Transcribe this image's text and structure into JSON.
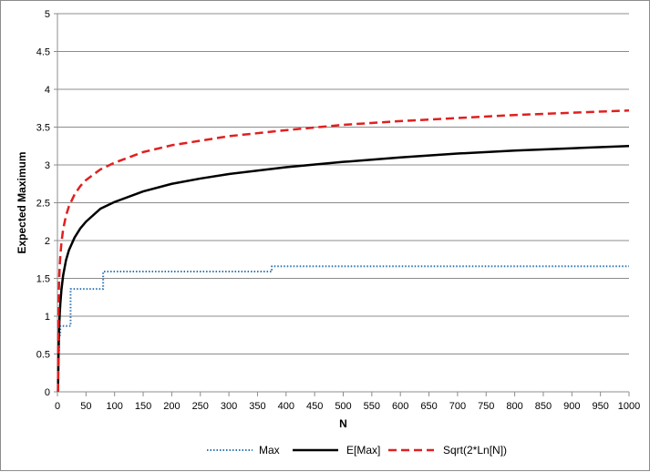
{
  "chart_data": {
    "type": "line",
    "title": "",
    "xlabel": "N",
    "ylabel": "Expected Maximum",
    "xlim": [
      0,
      1000
    ],
    "ylim": [
      0,
      5
    ],
    "x_ticks": [
      0,
      50,
      100,
      150,
      200,
      250,
      300,
      350,
      400,
      450,
      500,
      550,
      600,
      650,
      700,
      750,
      800,
      850,
      900,
      950,
      1000
    ],
    "y_ticks": [
      0,
      0.5,
      1,
      1.5,
      2,
      2.5,
      3,
      3.5,
      4,
      4.5,
      5
    ],
    "y_tick_labels": [
      "0",
      "0.5",
      "1",
      "1.5",
      "2",
      "2.5",
      "3",
      "3.5",
      "4",
      "4.5",
      "5"
    ],
    "grid": "horizontal",
    "legend_position": "bottom",
    "series": [
      {
        "name": "Max",
        "style": "dotted",
        "color": "#2e75b6",
        "step": true,
        "x": [
          1,
          2,
          3,
          5,
          7,
          10,
          15,
          22,
          23,
          50,
          78,
          80,
          200,
          370,
          375,
          500,
          1000
        ],
        "values": [
          0.3,
          0.55,
          0.75,
          0.87,
          0.87,
          0.87,
          0.87,
          0.87,
          1.36,
          1.36,
          1.36,
          1.59,
          1.59,
          1.59,
          1.66,
          1.66,
          1.66
        ]
      },
      {
        "name": "E[Max]",
        "style": "solid",
        "color": "#000000",
        "x": [
          1,
          2,
          3,
          4,
          5,
          7,
          10,
          15,
          20,
          30,
          40,
          50,
          75,
          100,
          150,
          200,
          250,
          300,
          400,
          500,
          600,
          700,
          800,
          900,
          1000
        ],
        "values": [
          0,
          0.56,
          0.85,
          1.03,
          1.16,
          1.35,
          1.54,
          1.74,
          1.87,
          2.04,
          2.16,
          2.25,
          2.42,
          2.51,
          2.65,
          2.75,
          2.82,
          2.88,
          2.97,
          3.04,
          3.1,
          3.15,
          3.19,
          3.22,
          3.25
        ]
      },
      {
        "name": "Sqrt(2*Ln[N])",
        "style": "dashed",
        "color": "#e02020",
        "x": [
          1,
          2,
          3,
          4,
          5,
          7,
          10,
          15,
          20,
          30,
          40,
          50,
          75,
          100,
          150,
          200,
          250,
          300,
          400,
          500,
          600,
          700,
          800,
          900,
          1000
        ],
        "values": [
          0,
          1.18,
          1.48,
          1.67,
          1.79,
          1.97,
          2.15,
          2.33,
          2.45,
          2.61,
          2.72,
          2.8,
          2.94,
          3.03,
          3.17,
          3.26,
          3.32,
          3.38,
          3.46,
          3.53,
          3.58,
          3.62,
          3.66,
          3.69,
          3.72
        ]
      }
    ]
  }
}
